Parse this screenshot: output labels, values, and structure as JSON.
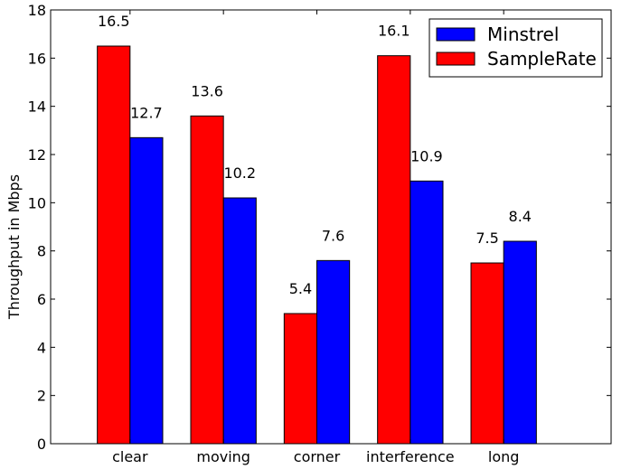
{
  "chart_data": {
    "type": "bar",
    "title": "",
    "xlabel": "",
    "ylabel": "Throughput in Mbps",
    "ylim": [
      0,
      18
    ],
    "yticks": [
      0,
      2,
      4,
      6,
      8,
      10,
      12,
      14,
      16,
      18
    ],
    "categories": [
      "clear",
      "moving",
      "corner",
      "interference",
      "long"
    ],
    "series": [
      {
        "name": "SampleRate",
        "color": "#ff0000",
        "values": [
          16.5,
          13.6,
          5.4,
          16.1,
          7.5
        ],
        "labels": [
          "16.5",
          "13.6",
          "5.4",
          "16.1",
          "7.5"
        ]
      },
      {
        "name": "Minstrel",
        "color": "#0000ff",
        "values": [
          12.7,
          10.2,
          7.6,
          10.9,
          8.4
        ],
        "labels": [
          "12.7",
          "10.2",
          "7.6",
          "10.9",
          "8.4"
        ]
      }
    ],
    "legend": {
      "placement": "top-right",
      "order": [
        "Minstrel",
        "SampleRate"
      ]
    },
    "grid": false
  }
}
